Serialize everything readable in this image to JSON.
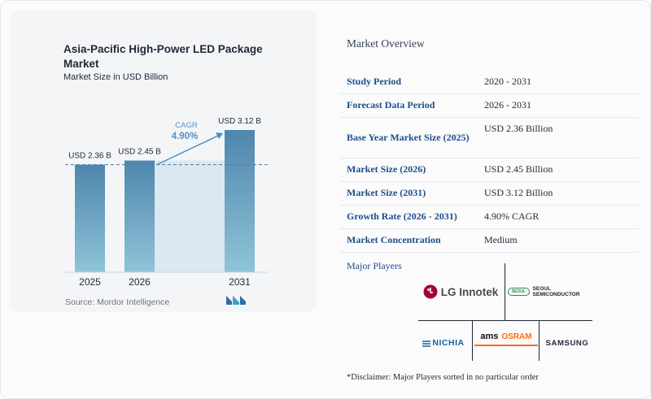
{
  "chart_data": {
    "type": "bar",
    "title": "Asia-Pacific High-Power LED Package Market",
    "subtitle": "Market Size in USD Billion",
    "categories": [
      "2025",
      "2026",
      "2031"
    ],
    "values": [
      2.36,
      2.45,
      3.12
    ],
    "data_labels": [
      "USD 2.36 B",
      "USD 2.45 B",
      "USD 3.12 B"
    ],
    "cagr_label": "CAGR",
    "cagr_value": "4.90%",
    "colors": {
      "bar_top": "#4f86ad",
      "bar_bottom": "#8fc4d8",
      "band": "#dde7f1",
      "cagr": "#5b8fbf",
      "arrow": "#4a90c2"
    },
    "grid": false
  },
  "source": "Source: Mordor Intelligence",
  "overview": {
    "title": "Market Overview",
    "rows": [
      {
        "key": "Study Period",
        "value": "2020 - 2031"
      },
      {
        "key": "Forecast Data Period",
        "value": "2026 - 2031"
      },
      {
        "key": "Base Year Market Size (2025)",
        "value": "USD 2.36 Billion"
      },
      {
        "key": "Market Size (2026)",
        "value": "USD 2.45 Billion"
      },
      {
        "key": "Market Size (2031)",
        "value": "USD 3.12 Billion"
      },
      {
        "key": "Growth Rate (2026 - 2031)",
        "value": "4.90% CAGR"
      },
      {
        "key": "Market Concentration",
        "value": "Medium"
      }
    ]
  },
  "major_players": {
    "title": "Major Players",
    "logos": {
      "lg": "LG Innotek",
      "seoul": "SEOUL SEMICONDUCTOR",
      "seoul_badge": "SEOUL",
      "nichia": "NICHIA",
      "ams": "ams",
      "osram": "OSRAM",
      "samsung": "SAMSUNG"
    }
  },
  "disclaimer": "*Disclaimer: Major Players sorted in no particular order"
}
